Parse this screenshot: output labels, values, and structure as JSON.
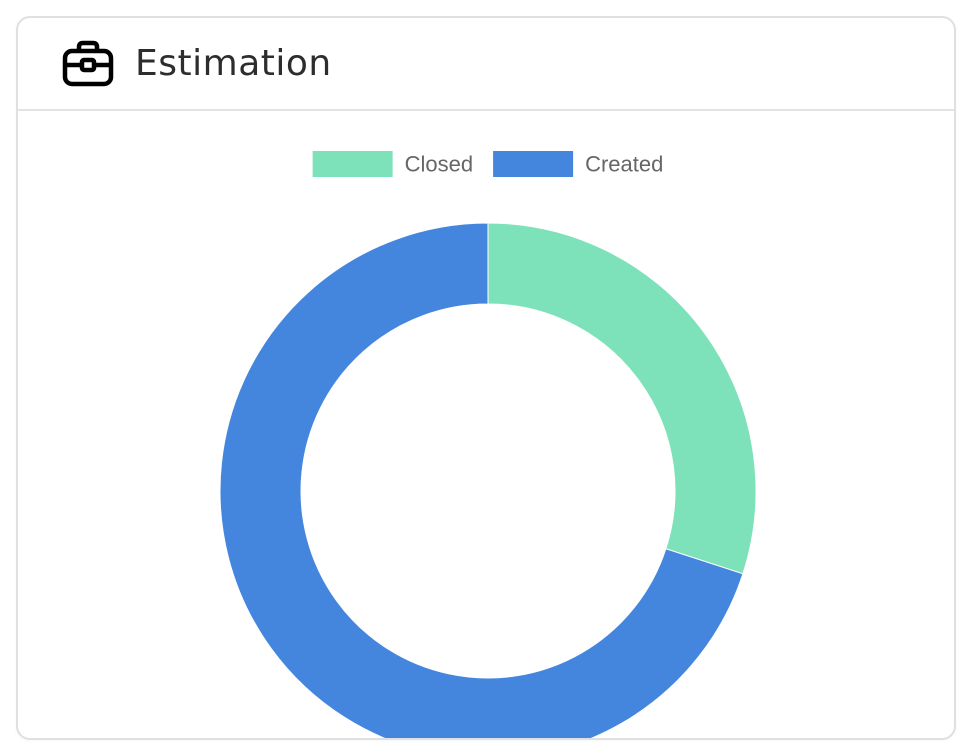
{
  "card": {
    "title": "Estimation",
    "icon": "briefcase-icon"
  },
  "colors": {
    "closed": "#7de2b9",
    "created": "#4486de",
    "legend_text": "#666666",
    "title_text": "#2d2d2d"
  },
  "chart_data": {
    "type": "pie",
    "variant": "doughnut",
    "legend_position": "top",
    "series": [
      {
        "name": "Closed",
        "value": 30,
        "color": "#7de2b9"
      },
      {
        "name": "Created",
        "value": 70,
        "color": "#4486de"
      }
    ]
  }
}
